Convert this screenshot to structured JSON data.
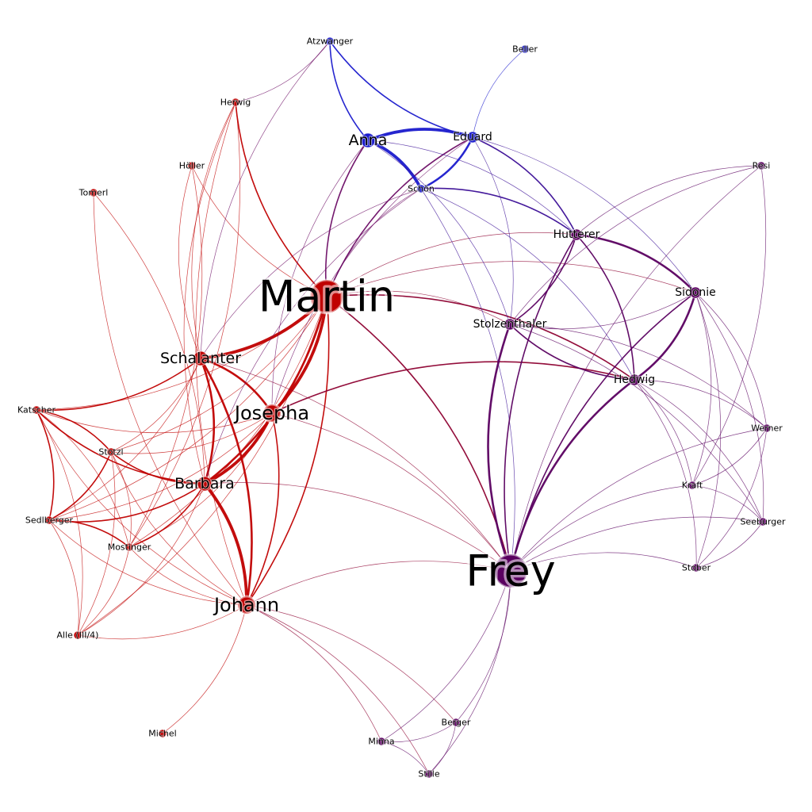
{
  "graph": {
    "colors": {
      "red": "#c00000",
      "blue": "#1a1acc",
      "purple": "#5a0060"
    },
    "nodes": [
      {
        "id": "Martin",
        "label": "Martin",
        "group": "red",
        "level": 6
      },
      {
        "id": "Frey",
        "label": "Frey",
        "group": "purple",
        "level": 6
      },
      {
        "id": "Schalanter",
        "label": "Schalanter",
        "group": "red",
        "level": 3
      },
      {
        "id": "Josepha",
        "label": "Josepha",
        "group": "red",
        "level": 4
      },
      {
        "id": "Barbara",
        "label": "Barbara",
        "group": "red",
        "level": 3
      },
      {
        "id": "Johann",
        "label": "Johann",
        "group": "red",
        "level": 4
      },
      {
        "id": "Anna",
        "label": "Anna",
        "group": "blue",
        "level": 3
      },
      {
        "id": "Eduard",
        "label": "Eduard",
        "group": "blue",
        "level": 2
      },
      {
        "id": "Schon",
        "label": "Schön",
        "group": "blue",
        "level": 1
      },
      {
        "id": "Atzwanger",
        "label": "Atzwanger",
        "group": "blue",
        "level": 1
      },
      {
        "id": "Beller",
        "label": "Beller",
        "group": "blue",
        "level": 1
      },
      {
        "id": "Herwig",
        "label": "Herwig",
        "group": "red",
        "level": 1
      },
      {
        "id": "Holler",
        "label": "Höller",
        "group": "red",
        "level": 1
      },
      {
        "id": "Tomerl",
        "label": "Tomerl",
        "group": "red",
        "level": 1
      },
      {
        "id": "Katscher",
        "label": "Katscher",
        "group": "red",
        "level": 1
      },
      {
        "id": "Stotzl",
        "label": "Stotzl",
        "group": "red",
        "level": 1
      },
      {
        "id": "Sedlberger",
        "label": "Sedlberger",
        "group": "red",
        "level": 1
      },
      {
        "id": "Mostinger",
        "label": "Mostinger",
        "group": "red",
        "level": 1
      },
      {
        "id": "Alle",
        "label": "Alle (III/4)",
        "group": "red",
        "level": 1
      },
      {
        "id": "Michel",
        "label": "Michel",
        "group": "red",
        "level": 1
      },
      {
        "id": "Hutterer",
        "label": "Hutterer",
        "group": "purple",
        "level": 2
      },
      {
        "id": "Stolzenthaler",
        "label": "Stolzenthaler",
        "group": "purple",
        "level": 2
      },
      {
        "id": "Sidonie",
        "label": "Sidonie",
        "group": "purple",
        "level": 2
      },
      {
        "id": "Hedwig",
        "label": "Hedwig",
        "group": "purple",
        "level": 2
      },
      {
        "id": "Resi",
        "label": "Resi",
        "group": "purple",
        "level": 1
      },
      {
        "id": "Werner",
        "label": "Werner",
        "group": "purple",
        "level": 1
      },
      {
        "id": "Kraft",
        "label": "Kraft",
        "group": "purple",
        "level": 1
      },
      {
        "id": "Seeburger",
        "label": "Seeburger",
        "group": "purple",
        "level": 1
      },
      {
        "id": "Stober",
        "label": "Stober",
        "group": "purple",
        "level": 1
      },
      {
        "id": "Berger",
        "label": "Berger",
        "group": "purple",
        "level": 1
      },
      {
        "id": "Minna",
        "label": "Minna",
        "group": "purple",
        "level": 1
      },
      {
        "id": "Stille",
        "label": "Stille",
        "group": "purple",
        "level": 1
      }
    ],
    "edges": [
      [
        "Martin",
        "Schalanter",
        4
      ],
      [
        "Martin",
        "Josepha",
        4
      ],
      [
        "Martin",
        "Barbara",
        3
      ],
      [
        "Martin",
        "Johann",
        2
      ],
      [
        "Martin",
        "Anna",
        2
      ],
      [
        "Martin",
        "Eduard",
        2
      ],
      [
        "Martin",
        "Schon",
        1
      ],
      [
        "Martin",
        "Herwig",
        2
      ],
      [
        "Martin",
        "Frey",
        2
      ],
      [
        "Martin",
        "Hedwig",
        2
      ],
      [
        "Martin",
        "Stolzenthaler",
        1
      ],
      [
        "Martin",
        "Katscher",
        1
      ],
      [
        "Martin",
        "Stotzl",
        1
      ],
      [
        "Martin",
        "Sedlberger",
        1
      ],
      [
        "Martin",
        "Mostinger",
        1
      ],
      [
        "Martin",
        "Alle",
        1
      ],
      [
        "Martin",
        "Holler",
        1
      ],
      [
        "Martin",
        "Hutterer",
        1
      ],
      [
        "Martin",
        "Sidonie",
        1
      ],
      [
        "Schalanter",
        "Josepha",
        3
      ],
      [
        "Schalanter",
        "Barbara",
        3
      ],
      [
        "Schalanter",
        "Johann",
        3
      ],
      [
        "Schalanter",
        "Katscher",
        2
      ],
      [
        "Schalanter",
        "Stotzl",
        1
      ],
      [
        "Schalanter",
        "Herwig",
        1
      ],
      [
        "Schalanter",
        "Holler",
        1
      ],
      [
        "Schalanter",
        "Atzwanger",
        1
      ],
      [
        "Schalanter",
        "Schon",
        1
      ],
      [
        "Schalanter",
        "Frey",
        1
      ],
      [
        "Schalanter",
        "Sedlberger",
        1
      ],
      [
        "Josepha",
        "Barbara",
        4
      ],
      [
        "Josepha",
        "Johann",
        2
      ],
      [
        "Josepha",
        "Stotzl",
        1
      ],
      [
        "Josepha",
        "Katscher",
        1
      ],
      [
        "Josepha",
        "Hedwig",
        2
      ],
      [
        "Josepha",
        "Frey",
        1
      ],
      [
        "Josepha",
        "Sedlberger",
        1
      ],
      [
        "Josepha",
        "Anna",
        1
      ],
      [
        "Josepha",
        "Mostinger",
        1
      ],
      [
        "Josepha",
        "Eduard",
        1
      ],
      [
        "Barbara",
        "Johann",
        4
      ],
      [
        "Barbara",
        "Stotzl",
        2
      ],
      [
        "Barbara",
        "Katscher",
        2
      ],
      [
        "Barbara",
        "Sedlberger",
        2
      ],
      [
        "Barbara",
        "Mostinger",
        2
      ],
      [
        "Barbara",
        "Alle",
        1
      ],
      [
        "Barbara",
        "Herwig",
        1
      ],
      [
        "Barbara",
        "Frey",
        1
      ],
      [
        "Barbara",
        "Schon",
        1
      ],
      [
        "Johann",
        "Frey",
        1
      ],
      [
        "Johann",
        "Stotzl",
        1
      ],
      [
        "Johann",
        "Sedlberger",
        1
      ],
      [
        "Johann",
        "Mostinger",
        1
      ],
      [
        "Johann",
        "Alle",
        1
      ],
      [
        "Johann",
        "Michel",
        1
      ],
      [
        "Johann",
        "Minna",
        1
      ],
      [
        "Johann",
        "Stille",
        1
      ],
      [
        "Johann",
        "Berger",
        1
      ],
      [
        "Johann",
        "Tomerl",
        1
      ],
      [
        "Johann",
        "Herwig",
        1
      ],
      [
        "Johann",
        "Katscher",
        1
      ],
      [
        "Anna",
        "Eduard",
        4
      ],
      [
        "Anna",
        "Schon",
        4
      ],
      [
        "Anna",
        "Atzwanger",
        2
      ],
      [
        "Anna",
        "Hutterer",
        1
      ],
      [
        "Anna",
        "Stolzenthaler",
        1
      ],
      [
        "Eduard",
        "Schon",
        3
      ],
      [
        "Eduard",
        "Beller",
        1
      ],
      [
        "Eduard",
        "Hutterer",
        2
      ],
      [
        "Eduard",
        "Sidonie",
        1
      ],
      [
        "Eduard",
        "Atzwanger",
        2
      ],
      [
        "Eduard",
        "Stolzenthaler",
        1
      ],
      [
        "Schon",
        "Hutterer",
        2
      ],
      [
        "Schon",
        "Hedwig",
        1
      ],
      [
        "Schon",
        "Frey",
        1
      ],
      [
        "Atzwanger",
        "Herwig",
        1
      ],
      [
        "Frey",
        "Hedwig",
        3
      ],
      [
        "Frey",
        "Stolzenthaler",
        3
      ],
      [
        "Frey",
        "Hutterer",
        2
      ],
      [
        "Frey",
        "Sidonie",
        2
      ],
      [
        "Frey",
        "Werner",
        1
      ],
      [
        "Frey",
        "Kraft",
        1
      ],
      [
        "Frey",
        "Seeburger",
        1
      ],
      [
        "Frey",
        "Stober",
        1
      ],
      [
        "Frey",
        "Berger",
        1
      ],
      [
        "Frey",
        "Minna",
        1
      ],
      [
        "Frey",
        "Stille",
        1
      ],
      [
        "Frey",
        "Resi",
        1
      ],
      [
        "Hutterer",
        "Sidonie",
        3
      ],
      [
        "Hutterer",
        "Hedwig",
        2
      ],
      [
        "Hutterer",
        "Stolzenthaler",
        2
      ],
      [
        "Hutterer",
        "Resi",
        1
      ],
      [
        "Sidonie",
        "Hedwig",
        3
      ],
      [
        "Sidonie",
        "Stober",
        1
      ],
      [
        "Sidonie",
        "Kraft",
        1
      ],
      [
        "Sidonie",
        "Seeburger",
        1
      ],
      [
        "Sidonie",
        "Werner",
        1
      ],
      [
        "Sidonie",
        "Stolzenthaler",
        1
      ],
      [
        "Hedwig",
        "Stolzenthaler",
        2
      ],
      [
        "Hedwig",
        "Werner",
        1
      ],
      [
        "Hedwig",
        "Kraft",
        1
      ],
      [
        "Hedwig",
        "Seeburger",
        1
      ],
      [
        "Hedwig",
        "Stober",
        1
      ],
      [
        "Stolzenthaler",
        "Resi",
        1
      ],
      [
        "Stolzenthaler",
        "Seeburger",
        1
      ],
      [
        "Stolzenthaler",
        "Werner",
        1
      ],
      [
        "Resi",
        "Kraft",
        1
      ],
      [
        "Werner",
        "Stober",
        1
      ],
      [
        "Werner",
        "Kraft",
        1
      ],
      [
        "Kraft",
        "Seeburger",
        1
      ],
      [
        "Seeburger",
        "Stober",
        1
      ],
      [
        "Berger",
        "Minna",
        1
      ],
      [
        "Berger",
        "Stille",
        1
      ],
      [
        "Minna",
        "Stille",
        1
      ],
      [
        "Katscher",
        "Stotzl",
        2
      ],
      [
        "Katscher",
        "Sedlberger",
        2
      ],
      [
        "Katscher",
        "Alle",
        1
      ],
      [
        "Katscher",
        "Mostinger",
        1
      ],
      [
        "Stotzl",
        "Sedlberger",
        2
      ],
      [
        "Stotzl",
        "Mostinger",
        1
      ],
      [
        "Stotzl",
        "Alle",
        1
      ],
      [
        "Sedlberger",
        "Mostinger",
        2
      ],
      [
        "Sedlberger",
        "Alle",
        1
      ],
      [
        "Mostinger",
        "Alle",
        1
      ],
      [
        "Herwig",
        "Mostinger",
        1
      ],
      [
        "Holler",
        "Mostinger",
        1
      ],
      [
        "Tomerl",
        "Barbara",
        1
      ]
    ]
  }
}
